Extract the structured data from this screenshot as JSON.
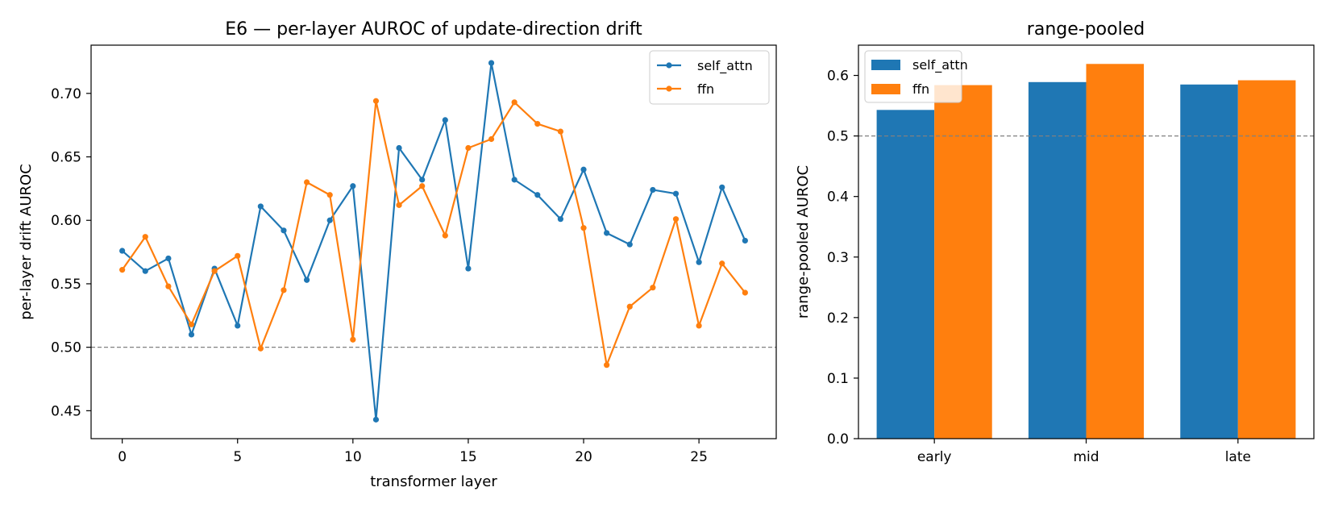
{
  "chart_data": [
    {
      "type": "line",
      "title": "E6 — per-layer AUROC of update-direction drift",
      "xlabel": "transformer layer",
      "ylabel": "per-layer drift AUROC",
      "xlim": [
        -1.35,
        28.35
      ],
      "ylim": [
        0.428,
        0.738
      ],
      "xticks": [
        "0",
        "5",
        "10",
        "15",
        "20",
        "25"
      ],
      "yticks": [
        "0.45",
        "0.50",
        "0.55",
        "0.60",
        "0.65",
        "0.70"
      ],
      "reference_line": 0.5,
      "grid": false,
      "legend_position": "top-right",
      "x": [
        0,
        1,
        2,
        3,
        4,
        5,
        6,
        7,
        8,
        9,
        10,
        11,
        12,
        13,
        14,
        15,
        16,
        17,
        18,
        19,
        20,
        21,
        22,
        23,
        24,
        25,
        26,
        27
      ],
      "series": [
        {
          "name": "self_attn",
          "color": "#1f77b4",
          "values": [
            0.576,
            0.56,
            0.57,
            0.51,
            0.562,
            0.517,
            0.611,
            0.592,
            0.553,
            0.6,
            0.627,
            0.443,
            0.657,
            0.632,
            0.679,
            0.562,
            0.724,
            0.632,
            0.62,
            0.601,
            0.64,
            0.59,
            0.581,
            0.624,
            0.621,
            0.567,
            0.626,
            0.584
          ]
        },
        {
          "name": "ffn",
          "color": "#ff7f0e",
          "values": [
            0.561,
            0.587,
            0.548,
            0.518,
            0.56,
            0.572,
            0.499,
            0.545,
            0.63,
            0.62,
            0.506,
            0.694,
            0.612,
            0.627,
            0.588,
            0.657,
            0.664,
            0.693,
            0.676,
            0.67,
            0.594,
            0.486,
            0.532,
            0.547,
            0.601,
            0.517,
            0.566,
            0.543
          ]
        }
      ]
    },
    {
      "type": "bar",
      "title": "range-pooled",
      "xlabel": "",
      "ylabel": "range-pooled AUROC",
      "ylim": [
        0,
        0.65
      ],
      "yticks": [
        "0.0",
        "0.1",
        "0.2",
        "0.3",
        "0.4",
        "0.5",
        "0.6"
      ],
      "reference_line": 0.5,
      "grid": false,
      "legend_position": "top-left",
      "categories": [
        "early",
        "mid",
        "late"
      ],
      "series": [
        {
          "name": "self_attn",
          "color": "#1f77b4",
          "values": [
            0.543,
            0.589,
            0.585
          ]
        },
        {
          "name": "ffn",
          "color": "#ff7f0e",
          "values": [
            0.584,
            0.619,
            0.592
          ]
        }
      ]
    }
  ]
}
